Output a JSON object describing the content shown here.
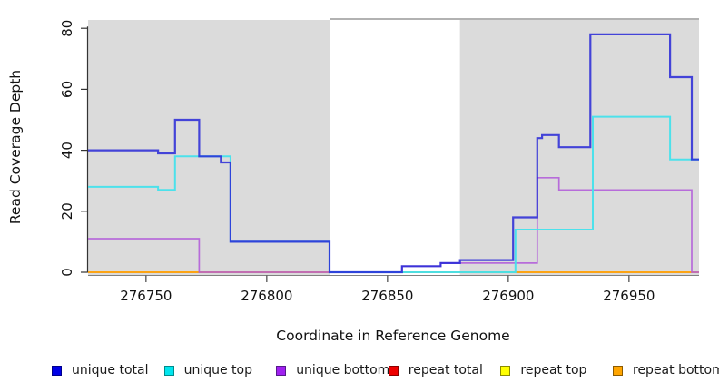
{
  "chart_data": {
    "type": "line",
    "subtype": "step",
    "title": "",
    "xlabel": "Coordinate in Reference Genome",
    "ylabel": "Read Coverage Depth",
    "xlim": [
      276726,
      276979
    ],
    "ylim": [
      0,
      80
    ],
    "x_ticks": [
      276750,
      276800,
      276850,
      276900,
      276950
    ],
    "y_ticks": [
      0,
      20,
      40,
      60,
      80
    ],
    "grid": false,
    "legend_position": "bottom",
    "shaded_regions": [
      [
        276726,
        276826
      ],
      [
        276880,
        276979
      ]
    ],
    "shade_color": "#DBDBDB",
    "shade_top_border_color": "#999999",
    "series": [
      {
        "name": "repeat total",
        "color": "#E03030",
        "width": 1.6,
        "opacity": 0.9,
        "points": [
          [
            276726,
            0
          ],
          [
            276979,
            0
          ]
        ]
      },
      {
        "name": "repeat top",
        "color": "#FFFF33",
        "width": 1.6,
        "opacity": 0.9,
        "points": [
          [
            276726,
            0
          ],
          [
            276979,
            0
          ]
        ]
      },
      {
        "name": "repeat bottom",
        "color": "#FFA10A",
        "width": 1.7,
        "opacity": 1,
        "points": [
          [
            276726,
            0
          ],
          [
            276979,
            0
          ]
        ]
      },
      {
        "name": "unique bottom",
        "color": "#B35FD9",
        "width": 1.7,
        "opacity": 0.9,
        "points": [
          [
            276726,
            11
          ],
          [
            276772,
            0
          ],
          [
            276856,
            2
          ],
          [
            276872,
            3
          ],
          [
            276912,
            31
          ],
          [
            276921,
            27
          ],
          [
            276976,
            0
          ],
          [
            276979,
            0
          ]
        ]
      },
      {
        "name": "unique top",
        "color": "#45E2EC",
        "width": 2.0,
        "opacity": 0.95,
        "points": [
          [
            276726,
            28
          ],
          [
            276755,
            27
          ],
          [
            276762,
            38
          ],
          [
            276785,
            10
          ],
          [
            276826,
            0
          ],
          [
            276903,
            14
          ],
          [
            276935,
            51
          ],
          [
            276967,
            37
          ],
          [
            276979,
            37
          ]
        ]
      },
      {
        "name": "unique total",
        "color": "#2828D7",
        "width": 2.2,
        "opacity": 0.85,
        "points": [
          [
            276726,
            40
          ],
          [
            276755,
            39
          ],
          [
            276762,
            50
          ],
          [
            276772,
            38
          ],
          [
            276781,
            36
          ],
          [
            276785,
            10
          ],
          [
            276826,
            0
          ],
          [
            276856,
            2
          ],
          [
            276872,
            3
          ],
          [
            276880,
            4
          ],
          [
            276902,
            18
          ],
          [
            276912,
            44
          ],
          [
            276914,
            45
          ],
          [
            276921,
            41
          ],
          [
            276934,
            78
          ],
          [
            276967,
            64
          ],
          [
            276976,
            37
          ],
          [
            276979,
            37
          ]
        ]
      }
    ],
    "legend": [
      {
        "label": "unique total",
        "fill": "#0000E6",
        "border": "#00008B"
      },
      {
        "label": "unique top",
        "fill": "#00E5EE",
        "border": "#008B8B"
      },
      {
        "label": "unique bottom",
        "fill": "#A020F0",
        "border": "#551A8B"
      },
      {
        "label": "repeat total",
        "fill": "#EE0000",
        "border": "#8B0000"
      },
      {
        "label": "repeat top",
        "fill": "#FFFF00",
        "border": "#8B8B00"
      },
      {
        "label": "repeat bottom",
        "fill": "#FFA500",
        "border": "#8B5A00"
      }
    ]
  }
}
